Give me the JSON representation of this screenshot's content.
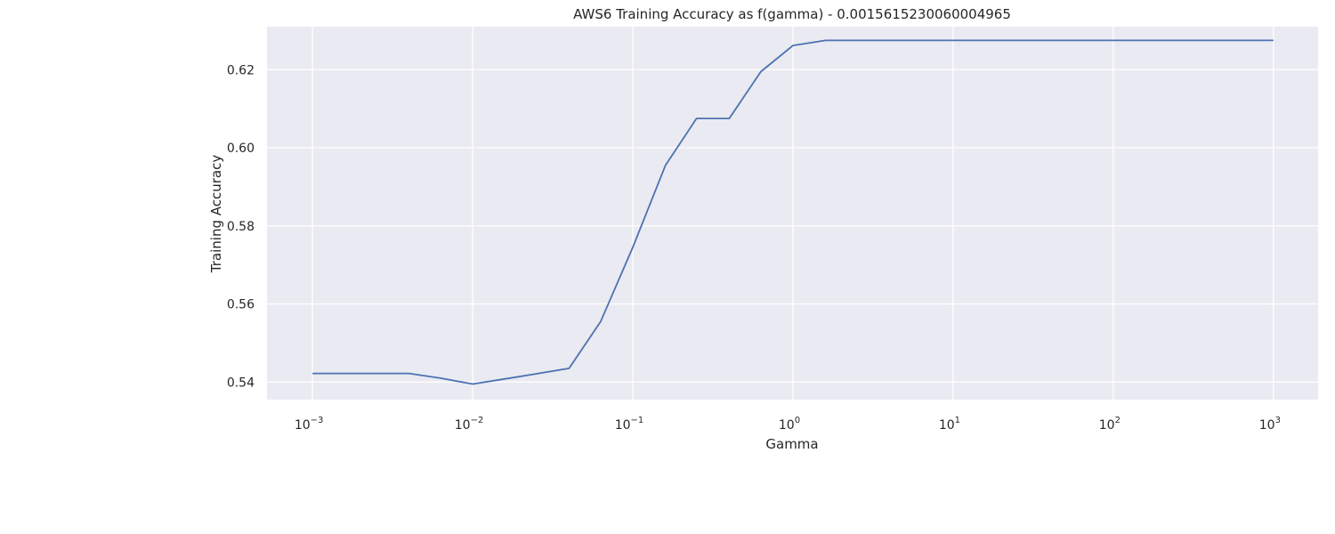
{
  "chart_data": {
    "type": "line",
    "title": "AWS6 Training Accuracy as f(gamma) - 0.0015615230060004965",
    "xlabel": "Gamma",
    "ylabel": "Training Accuracy",
    "xscale": "log",
    "xlim": [
      0.00052,
      1900
    ],
    "ylim": [
      0.5355,
      0.631
    ],
    "grid": true,
    "x_ticks": [
      {
        "value": 0.001,
        "base": "10",
        "exp": "−3"
      },
      {
        "value": 0.01,
        "base": "10",
        "exp": "−2"
      },
      {
        "value": 0.1,
        "base": "10",
        "exp": "−1"
      },
      {
        "value": 1,
        "base": "10",
        "exp": "0"
      },
      {
        "value": 10,
        "base": "10",
        "exp": "1"
      },
      {
        "value": 100,
        "base": "10",
        "exp": "2"
      },
      {
        "value": 1000,
        "base": "10",
        "exp": "3"
      }
    ],
    "y_ticks": [
      {
        "value": 0.54,
        "label": "0.54"
      },
      {
        "value": 0.56,
        "label": "0.56"
      },
      {
        "value": 0.58,
        "label": "0.58"
      },
      {
        "value": 0.6,
        "label": "0.60"
      },
      {
        "value": 0.62,
        "label": "0.62"
      }
    ],
    "series": [
      {
        "color": "#4c72b0",
        "x": [
          0.001,
          0.0016,
          0.0025,
          0.004,
          0.0063,
          0.01,
          0.016,
          0.025,
          0.04,
          0.063,
          0.1,
          0.16,
          0.25,
          0.4,
          0.63,
          1.0,
          1.6,
          2.5,
          4,
          6.3,
          10,
          16,
          25,
          40,
          63,
          100,
          160,
          250,
          400,
          630,
          1000
        ],
        "y": [
          0.5422,
          0.5422,
          0.5422,
          0.5422,
          0.541,
          0.5395,
          0.5408,
          0.5421,
          0.5435,
          0.5555,
          0.5745,
          0.5955,
          0.6075,
          0.6075,
          0.6195,
          0.6262,
          0.6275,
          0.6275,
          0.6275,
          0.6275,
          0.6275,
          0.6275,
          0.6275,
          0.6275,
          0.6275,
          0.6275,
          0.6275,
          0.6275,
          0.6275,
          0.6275,
          0.6275
        ]
      }
    ]
  }
}
